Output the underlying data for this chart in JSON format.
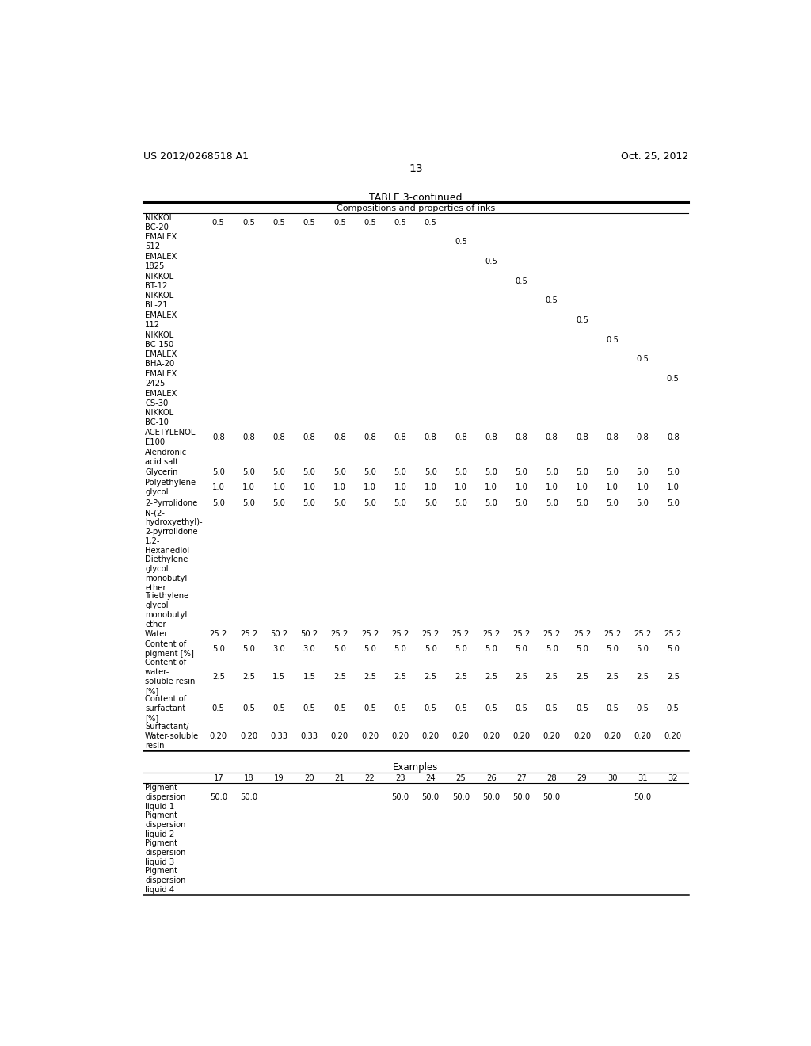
{
  "header_left": "US 2012/0268518 A1",
  "header_right": "Oct. 25, 2012",
  "page_number": "13",
  "table_title": "TABLE 3-continued",
  "table_subtitle": "Compositions and properties of inks",
  "bg_color": "#ffffff",
  "text_color": "#000000",
  "col_headers2": [
    "17",
    "18",
    "19",
    "20",
    "21",
    "22",
    "23",
    "24",
    "25",
    "26",
    "27",
    "28",
    "29",
    "30",
    "31",
    "32"
  ],
  "rows_top": [
    {
      "label": "NIKKOL\nBC-20",
      "values": [
        "0.5",
        "0.5",
        "0.5",
        "0.5",
        "0.5",
        "0.5",
        "0.5",
        "0.5",
        "",
        "",
        "",
        "",
        "",
        "",
        "",
        ""
      ]
    },
    {
      "label": "EMALEX\n512",
      "values": [
        "",
        "",
        "",
        "",
        "",
        "",
        "",
        "",
        "0.5",
        "",
        "",
        "",
        "",
        "",
        "",
        ""
      ]
    },
    {
      "label": "EMALEX\n1825",
      "values": [
        "",
        "",
        "",
        "",
        "",
        "",
        "",
        "",
        "",
        "0.5",
        "",
        "",
        "",
        "",
        "",
        ""
      ]
    },
    {
      "label": "NIKKOL\nBT-12",
      "values": [
        "",
        "",
        "",
        "",
        "",
        "",
        "",
        "",
        "",
        "",
        "0.5",
        "",
        "",
        "",
        "",
        ""
      ]
    },
    {
      "label": "NIKKOL\nBL-21",
      "values": [
        "",
        "",
        "",
        "",
        "",
        "",
        "",
        "",
        "",
        "",
        "",
        "0.5",
        "",
        "",
        "",
        ""
      ]
    },
    {
      "label": "EMALEX\n112",
      "values": [
        "",
        "",
        "",
        "",
        "",
        "",
        "",
        "",
        "",
        "",
        "",
        "",
        "0.5",
        "",
        "",
        ""
      ]
    },
    {
      "label": "NIKKOL\nBC-150",
      "values": [
        "",
        "",
        "",
        "",
        "",
        "",
        "",
        "",
        "",
        "",
        "",
        "",
        "",
        "0.5",
        "",
        ""
      ]
    },
    {
      "label": "EMALEX\nBHA-20",
      "values": [
        "",
        "",
        "",
        "",
        "",
        "",
        "",
        "",
        "",
        "",
        "",
        "",
        "",
        "",
        "0.5",
        ""
      ]
    },
    {
      "label": "EMALEX\n2425",
      "values": [
        "",
        "",
        "",
        "",
        "",
        "",
        "",
        "",
        "",
        "",
        "",
        "",
        "",
        "",
        "",
        "0.5"
      ]
    },
    {
      "label": "EMALEX\nCS-30",
      "values": [
        "",
        "",
        "",
        "",
        "",
        "",
        "",
        "",
        "",
        "",
        "",
        "",
        "",
        "",
        "",
        ""
      ]
    },
    {
      "label": "NIKKOL\nBC-10",
      "values": [
        "",
        "",
        "",
        "",
        "",
        "",
        "",
        "",
        "",
        "",
        "",
        "",
        "",
        "",
        "",
        ""
      ]
    },
    {
      "label": "ACETYLENOL\nE100",
      "values": [
        "0.8",
        "0.8",
        "0.8",
        "0.8",
        "0.8",
        "0.8",
        "0.8",
        "0.8",
        "0.8",
        "0.8",
        "0.8",
        "0.8",
        "0.8",
        "0.8",
        "0.8",
        "0.8"
      ]
    },
    {
      "label": "Alendronic\nacid salt",
      "values": [
        "",
        "",
        "",
        "",
        "",
        "",
        "",
        "",
        "",
        "",
        "",
        "",
        "",
        "",
        "",
        ""
      ]
    },
    {
      "label": "Glycerin",
      "values": [
        "5.0",
        "5.0",
        "5.0",
        "5.0",
        "5.0",
        "5.0",
        "5.0",
        "5.0",
        "5.0",
        "5.0",
        "5.0",
        "5.0",
        "5.0",
        "5.0",
        "5.0",
        "5.0"
      ]
    },
    {
      "label": "Polyethylene\nglycol",
      "values": [
        "1.0",
        "1.0",
        "1.0",
        "1.0",
        "1.0",
        "1.0",
        "1.0",
        "1.0",
        "1.0",
        "1.0",
        "1.0",
        "1.0",
        "1.0",
        "1.0",
        "1.0",
        "1.0"
      ]
    },
    {
      "label": "2-Pyrrolidone",
      "values": [
        "5.0",
        "5.0",
        "5.0",
        "5.0",
        "5.0",
        "5.0",
        "5.0",
        "5.0",
        "5.0",
        "5.0",
        "5.0",
        "5.0",
        "5.0",
        "5.0",
        "5.0",
        "5.0"
      ]
    },
    {
      "label": "N-(2-\nhydroxyethyl)-\n2-pyrrolidone",
      "values": [
        "",
        "",
        "",
        "",
        "",
        "",
        "",
        "",
        "",
        "",
        "",
        "",
        "",
        "",
        "",
        ""
      ]
    },
    {
      "label": "1,2-\nHexanediol",
      "values": [
        "",
        "",
        "",
        "",
        "",
        "",
        "",
        "",
        "",
        "",
        "",
        "",
        "",
        "",
        "",
        ""
      ]
    },
    {
      "label": "Diethylene\nglycol\nmonobutyl\nether",
      "values": [
        "",
        "",
        "",
        "",
        "",
        "",
        "",
        "",
        "",
        "",
        "",
        "",
        "",
        "",
        "",
        ""
      ]
    },
    {
      "label": "Triethylene\nglycol\nmonobutyl\nether",
      "values": [
        "",
        "",
        "",
        "",
        "",
        "",
        "",
        "",
        "",
        "",
        "",
        "",
        "",
        "",
        "",
        ""
      ]
    },
    {
      "label": "Water",
      "values": [
        "25.2",
        "25.2",
        "50.2",
        "50.2",
        "25.2",
        "25.2",
        "25.2",
        "25.2",
        "25.2",
        "25.2",
        "25.2",
        "25.2",
        "25.2",
        "25.2",
        "25.2",
        "25.2"
      ]
    },
    {
      "label": "Content of\npigment [%]",
      "values": [
        "5.0",
        "5.0",
        "3.0",
        "3.0",
        "5.0",
        "5.0",
        "5.0",
        "5.0",
        "5.0",
        "5.0",
        "5.0",
        "5.0",
        "5.0",
        "5.0",
        "5.0",
        "5.0"
      ]
    },
    {
      "label": "Content of\nwater-\nsoluble resin\n[%]",
      "values": [
        "2.5",
        "2.5",
        "1.5",
        "1.5",
        "2.5",
        "2.5",
        "2.5",
        "2.5",
        "2.5",
        "2.5",
        "2.5",
        "2.5",
        "2.5",
        "2.5",
        "2.5",
        "2.5"
      ]
    },
    {
      "label": "Content of\nsurfactant\n[%]",
      "values": [
        "0.5",
        "0.5",
        "0.5",
        "0.5",
        "0.5",
        "0.5",
        "0.5",
        "0.5",
        "0.5",
        "0.5",
        "0.5",
        "0.5",
        "0.5",
        "0.5",
        "0.5",
        "0.5"
      ]
    },
    {
      "label": "Surfactant/\nWater-soluble\nresin",
      "values": [
        "0.20",
        "0.20",
        "0.33",
        "0.33",
        "0.20",
        "0.20",
        "0.20",
        "0.20",
        "0.20",
        "0.20",
        "0.20",
        "0.20",
        "0.20",
        "0.20",
        "0.20",
        "0.20"
      ]
    }
  ],
  "rows_bottom": [
    {
      "label": "Pigment\ndispersion\nliquid 1",
      "values": [
        "50.0",
        "50.0",
        "",
        "",
        "",
        "",
        "50.0",
        "50.0",
        "50.0",
        "50.0",
        "50.0",
        "50.0",
        "",
        "",
        "50.0",
        ""
      ]
    },
    {
      "label": "Pigment\ndispersion\nliquid 2",
      "values": [
        "",
        "",
        "",
        "",
        "",
        "",
        "",
        "",
        "",
        "",
        "",
        "",
        "",
        "",
        "",
        ""
      ]
    },
    {
      "label": "Pigment\ndispersion\nliquid 3",
      "values": [
        "",
        "",
        "",
        "",
        "",
        "",
        "",
        "",
        "",
        "",
        "",
        "",
        "",
        "",
        "",
        ""
      ]
    },
    {
      "label": "Pigment\ndispersion\nliquid 4",
      "values": [
        "",
        "",
        "",
        "",
        "",
        "",
        "",
        "",
        "",
        "",
        "",
        "",
        "",
        "",
        "",
        ""
      ]
    }
  ]
}
